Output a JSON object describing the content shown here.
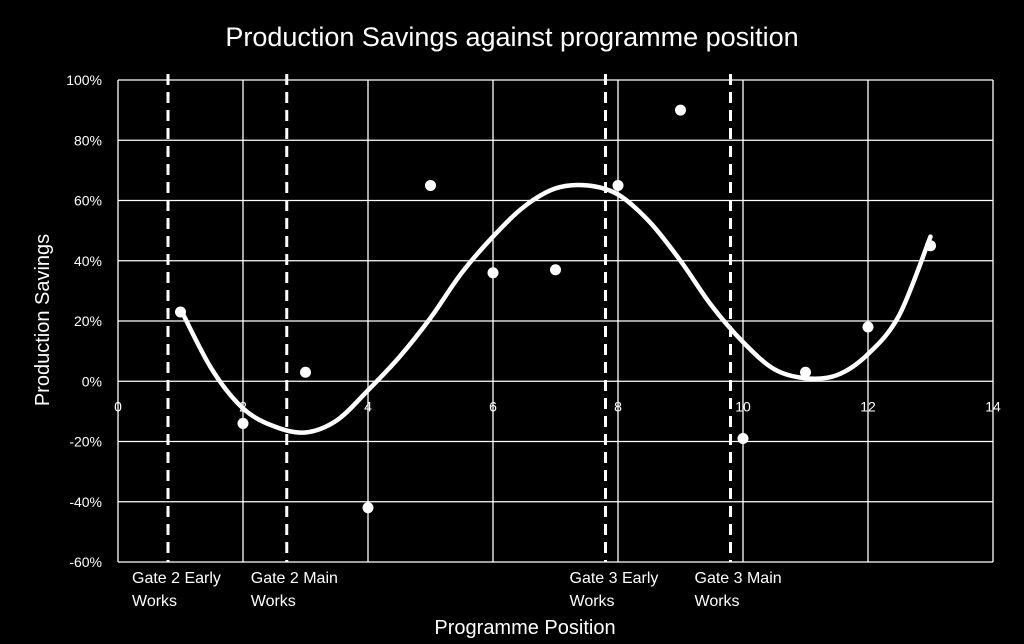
{
  "chart_data": {
    "type": "scatter",
    "title": "Production Savings against programme position",
    "xlabel": "Programme Position",
    "ylabel": "Production Savings",
    "xlim": [
      0,
      14
    ],
    "ylim": [
      -60,
      100
    ],
    "x_ticks": [
      0,
      2,
      4,
      6,
      8,
      10,
      12,
      14
    ],
    "y_ticks": [
      -60,
      -40,
      -20,
      0,
      20,
      40,
      60,
      80,
      100
    ],
    "x_tick_labels": [
      "0",
      "2",
      "4",
      "6",
      "8",
      "10",
      "12",
      "14"
    ],
    "y_tick_labels": [
      "-60%",
      "-40%",
      "-20%",
      "0%",
      "20%",
      "40%",
      "60%",
      "80%",
      "100%"
    ],
    "grid": true,
    "legend": "none",
    "points": [
      {
        "x": 1,
        "y": 23
      },
      {
        "x": 2,
        "y": -14
      },
      {
        "x": 3,
        "y": 3
      },
      {
        "x": 4,
        "y": -42
      },
      {
        "x": 5,
        "y": 65
      },
      {
        "x": 6,
        "y": 36
      },
      {
        "x": 7,
        "y": 37
      },
      {
        "x": 8,
        "y": 65
      },
      {
        "x": 9,
        "y": 90
      },
      {
        "x": 10,
        "y": -19
      },
      {
        "x": 11,
        "y": 3
      },
      {
        "x": 12,
        "y": 18
      },
      {
        "x": 13,
        "y": 45
      }
    ],
    "trendline": {
      "x": [
        1,
        1.5,
        2,
        2.5,
        3,
        3.5,
        4,
        4.5,
        5,
        5.5,
        6,
        6.5,
        7,
        7.5,
        8,
        8.5,
        9,
        9.5,
        10,
        10.5,
        11,
        11.5,
        12,
        12.5,
        13
      ],
      "y": [
        24,
        4,
        -9,
        -15,
        -17,
        -13,
        -3,
        8,
        21,
        36,
        48,
        58,
        64,
        65,
        62,
        53,
        40,
        25,
        13,
        4,
        1,
        2,
        9,
        22,
        48
      ]
    },
    "annotations": [
      {
        "x": 0.8,
        "lines": [
          "Gate 2 Early",
          "Works"
        ]
      },
      {
        "x": 2.7,
        "lines": [
          "Gate 2 Main",
          "Works"
        ]
      },
      {
        "x": 7.8,
        "lines": [
          "Gate 3 Early",
          "Works"
        ]
      },
      {
        "x": 9.8,
        "lines": [
          "Gate 3 Main",
          "Works"
        ]
      }
    ],
    "colors": {
      "background": "#000000",
      "foreground": "#ffffff"
    }
  }
}
